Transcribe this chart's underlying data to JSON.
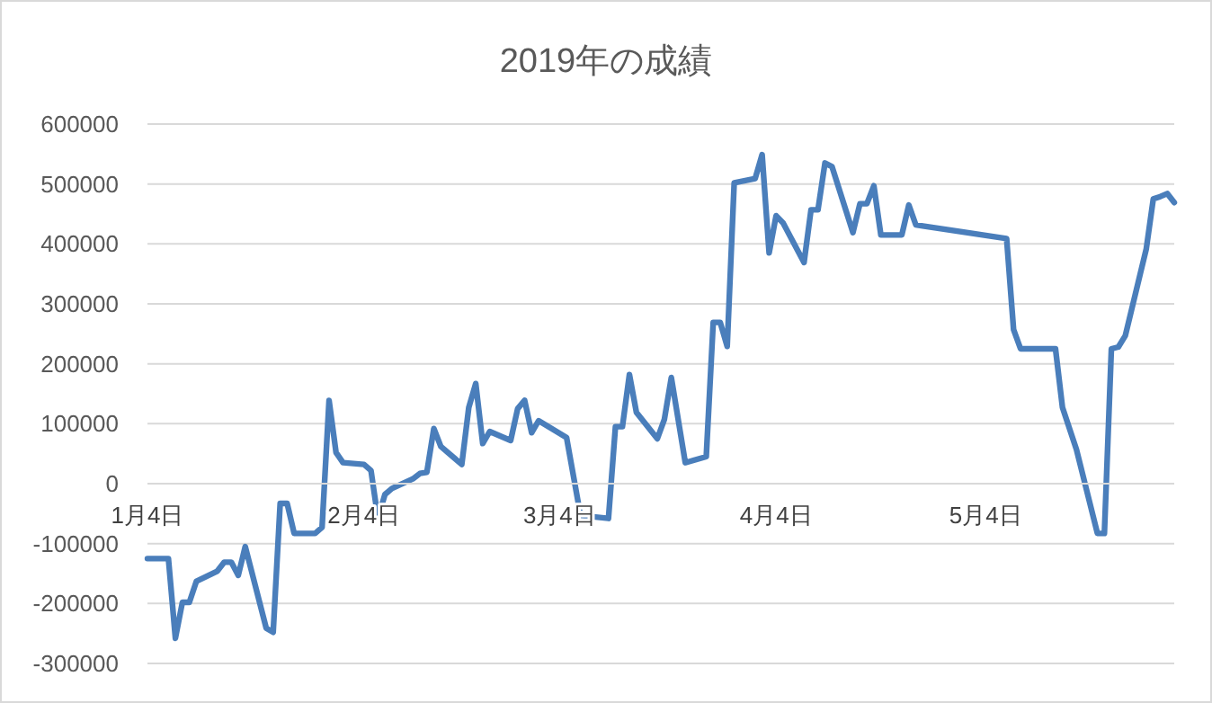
{
  "chart_data": {
    "type": "line",
    "title": "2019年の成績",
    "x": [
      "2019-01-04",
      "2019-01-07",
      "2019-01-08",
      "2019-01-09",
      "2019-01-10",
      "2019-01-11",
      "2019-01-14",
      "2019-01-15",
      "2019-01-16",
      "2019-01-17",
      "2019-01-18",
      "2019-01-21",
      "2019-01-22",
      "2019-01-23",
      "2019-01-24",
      "2019-01-25",
      "2019-01-28",
      "2019-01-29",
      "2019-01-30",
      "2019-01-31",
      "2019-02-01",
      "2019-02-04",
      "2019-02-05",
      "2019-02-06",
      "2019-02-07",
      "2019-02-08",
      "2019-02-11",
      "2019-02-12",
      "2019-02-13",
      "2019-02-14",
      "2019-02-15",
      "2019-02-18",
      "2019-02-19",
      "2019-02-20",
      "2019-02-21",
      "2019-02-22",
      "2019-02-25",
      "2019-02-26",
      "2019-02-27",
      "2019-02-28",
      "2019-03-01",
      "2019-03-05",
      "2019-03-07",
      "2019-03-11",
      "2019-03-12",
      "2019-03-13",
      "2019-03-14",
      "2019-03-15",
      "2019-03-18",
      "2019-03-19",
      "2019-03-20",
      "2019-03-22",
      "2019-03-25",
      "2019-03-26",
      "2019-03-27",
      "2019-03-28",
      "2019-03-29",
      "2019-04-01",
      "2019-04-02",
      "2019-04-03",
      "2019-04-04",
      "2019-04-05",
      "2019-04-08",
      "2019-04-09",
      "2019-04-10",
      "2019-04-11",
      "2019-04-12",
      "2019-04-15",
      "2019-04-16",
      "2019-04-17",
      "2019-04-18",
      "2019-04-19",
      "2019-04-22",
      "2019-04-23",
      "2019-04-24",
      "2019-04-25",
      "2019-05-07",
      "2019-05-08",
      "2019-05-09",
      "2019-05-14",
      "2019-05-15",
      "2019-05-17",
      "2019-05-20",
      "2019-05-21",
      "2019-05-22",
      "2019-05-23",
      "2019-05-24",
      "2019-05-27",
      "2019-05-28",
      "2019-05-29",
      "2019-05-30",
      "2019-05-31"
    ],
    "series": [
      {
        "color": "#4a7ebb",
        "values": [
          -125000,
          -125000,
          -258000,
          -198000,
          -198000,
          -163000,
          -146000,
          -131000,
          -131000,
          -153000,
          -105000,
          -241000,
          -248000,
          -33000,
          -33000,
          -83000,
          -83000,
          -73000,
          139000,
          52000,
          35000,
          32000,
          22000,
          -58000,
          -18000,
          -8000,
          8000,
          17000,
          19000,
          92000,
          62000,
          32000,
          127000,
          167000,
          67000,
          87000,
          72000,
          125000,
          139000,
          85000,
          105000,
          77000,
          -53000,
          -58000,
          95000,
          95000,
          182000,
          119000,
          75000,
          107000,
          177000,
          35000,
          45000,
          269000,
          269000,
          229000,
          502000,
          509000,
          549000,
          385000,
          447000,
          435000,
          369000,
          457000,
          457000,
          535000,
          529000,
          419000,
          467000,
          467000,
          497000,
          415000,
          415000,
          465000,
          432000,
          430000,
          409000,
          257000,
          225000,
          225000,
          127000,
          57000,
          -83000,
          -83000,
          225000,
          228000,
          247000,
          392000,
          475000,
          479000,
          484000,
          469000
        ]
      }
    ],
    "xlim": [
      "2019-01-04",
      "2019-05-31"
    ],
    "xticks": [
      {
        "value": "2019-01-04",
        "label": "1月4日"
      },
      {
        "value": "2019-02-04",
        "label": "2月4日"
      },
      {
        "value": "2019-03-04",
        "label": "3月4日"
      },
      {
        "value": "2019-04-04",
        "label": "4月4日"
      },
      {
        "value": "2019-05-04",
        "label": "5月4日"
      }
    ],
    "ylim": [
      -300000,
      600000
    ],
    "yticks": [
      -300000,
      -200000,
      -100000,
      0,
      100000,
      200000,
      300000,
      400000,
      500000,
      600000
    ],
    "grid": "y",
    "marker": "none",
    "line_style": "solid"
  }
}
